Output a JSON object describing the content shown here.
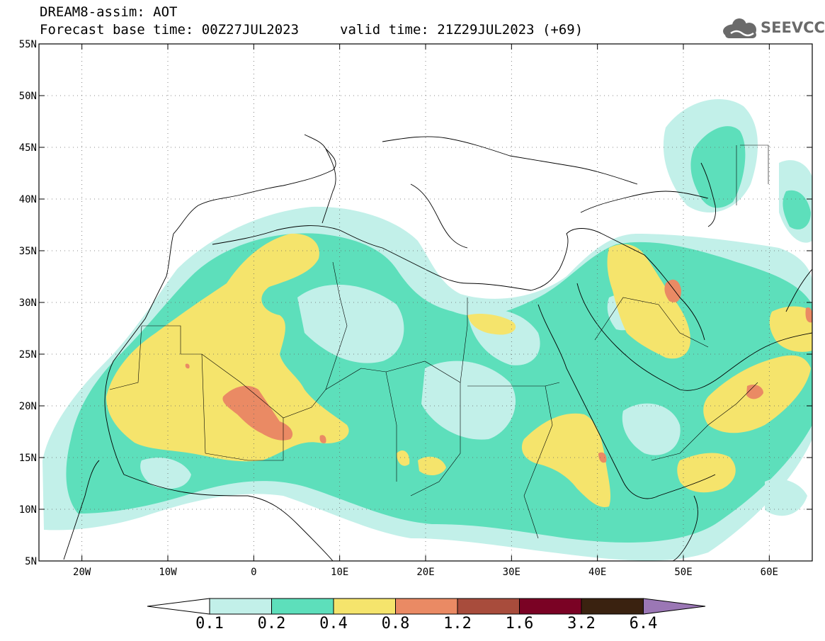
{
  "header": {
    "title_line1": "DREAM8-assim: AOT",
    "title_line2": "Forecast base time: 00Z27JUL2023",
    "valid_time": "valid time: 21Z29JUL2023 (+69)"
  },
  "logo": {
    "text": "SEEVCCC",
    "icon": "cloud-icon",
    "color": "#6a6a6a"
  },
  "map": {
    "lat_labels": [
      "55N",
      "50N",
      "45N",
      "40N",
      "35N",
      "30N",
      "25N",
      "20N",
      "15N",
      "10N",
      "5N"
    ],
    "lon_labels": [
      "20W",
      "10W",
      "0",
      "10E",
      "20E",
      "30E",
      "40E",
      "50E",
      "60E"
    ],
    "lat_range": [
      5,
      55
    ],
    "lon_range": [
      -25,
      65
    ],
    "grid": "dotted"
  },
  "colorbar": {
    "labels": [
      "0.1",
      "0.2",
      "0.4",
      "0.8",
      "1.2",
      "1.6",
      "3.2",
      "6.4"
    ],
    "colors": [
      "#ffffff",
      "#c2f0e9",
      "#5ddfbb",
      "#f5e46c",
      "#ea8a64",
      "#a84c3c",
      "#7a0224",
      "#3a2210",
      "#9b77b5"
    ]
  }
}
